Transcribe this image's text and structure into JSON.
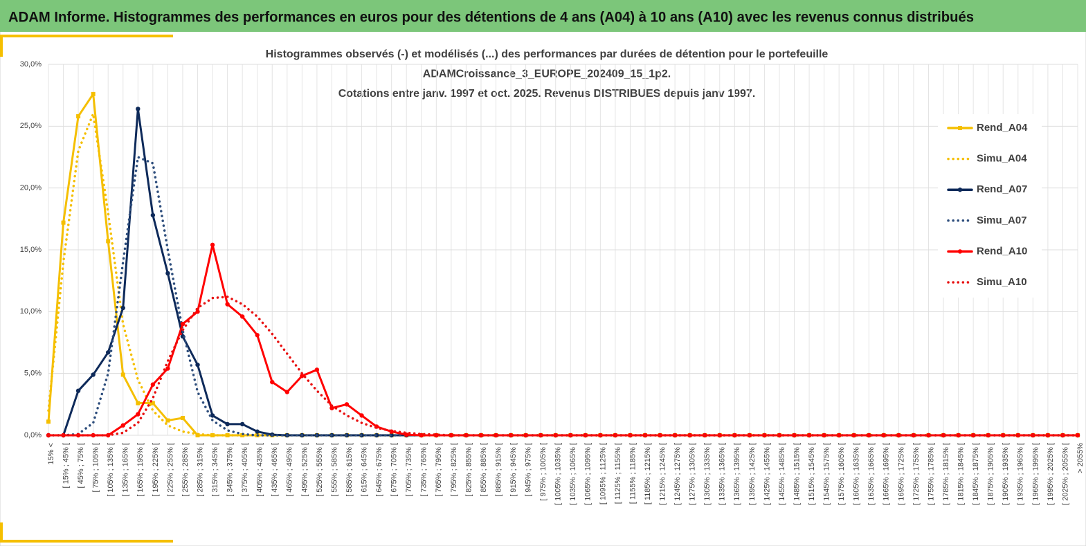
{
  "header": {
    "title": "ADAM Informe. Histogrammes des performances en euros pour des détentions de 4 ans (A04) à 10 ans (A10) avec les revenus connus distribués"
  },
  "chart_data": {
    "type": "line",
    "title": [
      "Histogrammes observés (-) et modélisés (...) des performances  par durées de détention pour le portefeuille",
      "ADAMCroissance_3_EUROPE_202409_15_1p2.",
      "Cotations entre janv. 1997 et oct. 2025. Revenus DISTRIBUES depuis janv 1997."
    ],
    "categories": [
      "15% <",
      "[ 15% ; 45% [",
      "[ 45% ; 75% [",
      "[ 75% ; 105% [",
      "[ 105% ; 135% [",
      "[ 135% ; 165% [",
      "[ 165% ; 195% [",
      "[ 195% ; 225% [",
      "[ 225% ; 255% [",
      "[ 255% ; 285% [",
      "[ 285% ; 315% [",
      "[ 315% ; 345% [",
      "[ 345% ; 375% [",
      "[ 375% ; 405% [",
      "[ 405% ; 435% [",
      "[ 435% ; 465% [",
      "[ 465% ; 495% [",
      "[ 495% ; 525% [",
      "[ 525% ; 555% [",
      "[ 555% ; 585% [",
      "[ 585% ; 615% [",
      "[ 615% ; 645% [",
      "[ 645% ; 675% [",
      "[ 675% ; 705% [",
      "[ 705% ; 735% [",
      "[ 735% ; 765% [",
      "[ 765% ; 795% [",
      "[ 795% ; 825% [",
      "[ 825% ; 855% [",
      "[ 855% ; 885% [",
      "[ 885% ; 915% [",
      "[ 915% ; 945% [",
      "[ 945% ; 975% [",
      "[ 975% ; 1005% [",
      "[ 1005% ; 1035% [",
      "[ 1035% ; 1065% [",
      "[ 1065% ; 1095% [",
      "[ 1095% ; 1125% [",
      "[ 1125% ; 1155% [",
      "[ 1155% ; 1185% [",
      "[ 1185% ; 1215% [",
      "[ 1215% ; 1245% [",
      "[ 1245% ; 1275% [",
      "[ 1275% ; 1305% [",
      "[ 1305% ; 1335% [",
      "[ 1335% ; 1365% [",
      "[ 1365% ; 1395% [",
      "[ 1395% ; 1425% [",
      "[ 1425% ; 1455% [",
      "[ 1455% ; 1485% [",
      "[ 1485% ; 1515% [",
      "[ 1515% ; 1545% [",
      "[ 1545% ; 1575% [",
      "[ 1575% ; 1605% [",
      "[ 1605% ; 1635% [",
      "[ 1635% ; 1665% [",
      "[ 1665% ; 1695% [",
      "[ 1695% ; 1725% [",
      "[ 1725% ; 1755% [",
      "[ 1755% ; 1785% [",
      "[ 1785% ; 1815% [",
      "[ 1815% ; 1845% [",
      "[ 1845% ; 1875% [",
      "[ 1875% ; 1905% [",
      "[ 1905% ; 1935% [",
      "[ 1935% ; 1965% [",
      "[ 1965% ; 1995% [",
      "[ 1995% ; 2025% [",
      "[ 2025% ; 2055% [",
      "> 2055%"
    ],
    "series": [
      {
        "name": "Rend_A04",
        "color": "#f5bf00",
        "line_style": "solid",
        "marker": "square",
        "values": [
          1.1,
          17.2,
          25.8,
          27.6,
          15.7,
          4.9,
          2.6,
          2.6,
          1.2,
          1.4,
          0,
          0,
          0,
          0,
          0,
          0,
          0,
          0,
          0,
          0,
          0,
          0,
          0,
          0,
          0,
          0,
          0,
          0,
          0,
          0,
          0,
          0,
          0,
          0,
          0,
          0,
          0,
          0,
          0,
          0,
          0,
          0,
          0,
          0,
          0,
          0,
          0,
          0,
          0,
          0,
          0,
          0,
          0,
          0,
          0,
          0,
          0,
          0,
          0,
          0,
          0,
          0,
          0,
          0,
          0,
          0,
          0,
          0,
          0,
          0
        ]
      },
      {
        "name": "Simu_A04",
        "color": "#f5bf00",
        "line_style": "dotted",
        "marker": "none",
        "values": [
          2,
          14,
          23,
          26,
          18,
          9,
          4.5,
          2,
          0.8,
          0.3,
          0.1,
          0,
          0,
          0,
          0,
          0,
          0,
          0,
          0,
          0,
          0,
          0,
          0,
          0,
          0,
          0,
          0,
          0,
          0,
          0,
          0,
          0,
          0,
          0,
          0,
          0,
          0,
          0,
          0,
          0,
          0,
          0,
          0,
          0,
          0,
          0,
          0,
          0,
          0,
          0,
          0,
          0,
          0,
          0,
          0,
          0,
          0,
          0,
          0,
          0,
          0,
          0,
          0,
          0,
          0,
          0,
          0,
          0,
          0,
          0
        ]
      },
      {
        "name": "Rend_A07",
        "color": "#0e2a5a",
        "line_style": "solid",
        "marker": "circle",
        "values": [
          0,
          0,
          3.6,
          4.9,
          6.7,
          10.3,
          26.4,
          17.8,
          13.1,
          8,
          5.7,
          1.6,
          0.9,
          0.9,
          0.3,
          0.05,
          0,
          0,
          0,
          0,
          0,
          0,
          0,
          0,
          0,
          0,
          0,
          0,
          0,
          0,
          0,
          0,
          0,
          0,
          0,
          0,
          0,
          0,
          0,
          0,
          0,
          0,
          0,
          0,
          0,
          0,
          0,
          0,
          0,
          0,
          0,
          0,
          0,
          0,
          0,
          0,
          0,
          0,
          0,
          0,
          0,
          0,
          0,
          0,
          0,
          0,
          0,
          0,
          0,
          0
        ]
      },
      {
        "name": "Simu_A07",
        "color": "#2d4d7c",
        "line_style": "dotted",
        "marker": "none",
        "values": [
          0,
          0,
          0.1,
          1,
          5,
          14,
          22.5,
          22,
          15,
          8.5,
          3.5,
          1.2,
          0.4,
          0.1,
          0,
          0,
          0,
          0,
          0,
          0,
          0,
          0,
          0,
          0,
          0,
          0,
          0,
          0,
          0,
          0,
          0,
          0,
          0,
          0,
          0,
          0,
          0,
          0,
          0,
          0,
          0,
          0,
          0,
          0,
          0,
          0,
          0,
          0,
          0,
          0,
          0,
          0,
          0,
          0,
          0,
          0,
          0,
          0,
          0,
          0,
          0,
          0,
          0,
          0,
          0,
          0,
          0,
          0,
          0,
          0
        ]
      },
      {
        "name": "Rend_A10",
        "color": "#ff0000",
        "line_style": "solid",
        "marker": "circle",
        "values": [
          0,
          0,
          0,
          0,
          0,
          0.8,
          1.7,
          4.1,
          5.4,
          9,
          10,
          15.4,
          10.6,
          9.6,
          8.1,
          4.3,
          3.5,
          4.8,
          5.3,
          2.2,
          2.5,
          1.6,
          0.7,
          0.3,
          0.05,
          0,
          0,
          0,
          0,
          0,
          0,
          0,
          0,
          0,
          0,
          0,
          0,
          0,
          0,
          0,
          0,
          0,
          0,
          0,
          0,
          0,
          0,
          0,
          0,
          0,
          0,
          0,
          0,
          0,
          0,
          0,
          0,
          0,
          0,
          0,
          0,
          0,
          0,
          0,
          0,
          0,
          0,
          0,
          0,
          0
        ]
      },
      {
        "name": "Simu_A10",
        "color": "#e81010",
        "line_style": "dotted",
        "marker": "none",
        "values": [
          0,
          0,
          0,
          0,
          0,
          0.2,
          1,
          3,
          6,
          8.5,
          10.3,
          11.1,
          11.2,
          10.6,
          9.6,
          8.2,
          6.6,
          5,
          3.6,
          2.4,
          1.6,
          1,
          0.6,
          0.35,
          0.2,
          0.1,
          0.05,
          0,
          0,
          0,
          0,
          0,
          0,
          0,
          0,
          0,
          0,
          0,
          0,
          0,
          0,
          0,
          0,
          0,
          0,
          0,
          0,
          0,
          0,
          0,
          0,
          0,
          0,
          0,
          0,
          0,
          0,
          0,
          0,
          0,
          0,
          0,
          0,
          0,
          0,
          0,
          0,
          0,
          0,
          0
        ]
      }
    ],
    "ylim": [
      0,
      30
    ],
    "yticks": [
      {
        "value": 0,
        "label": "0,0%"
      },
      {
        "value": 5,
        "label": "5,0%"
      },
      {
        "value": 10,
        "label": "10,0%"
      },
      {
        "value": 15,
        "label": "15,0%"
      },
      {
        "value": 20,
        "label": "20,0%"
      },
      {
        "value": 25,
        "label": "25,0%"
      },
      {
        "value": 30,
        "label": "30,0%"
      }
    ],
    "grid": true,
    "legend": "right"
  }
}
